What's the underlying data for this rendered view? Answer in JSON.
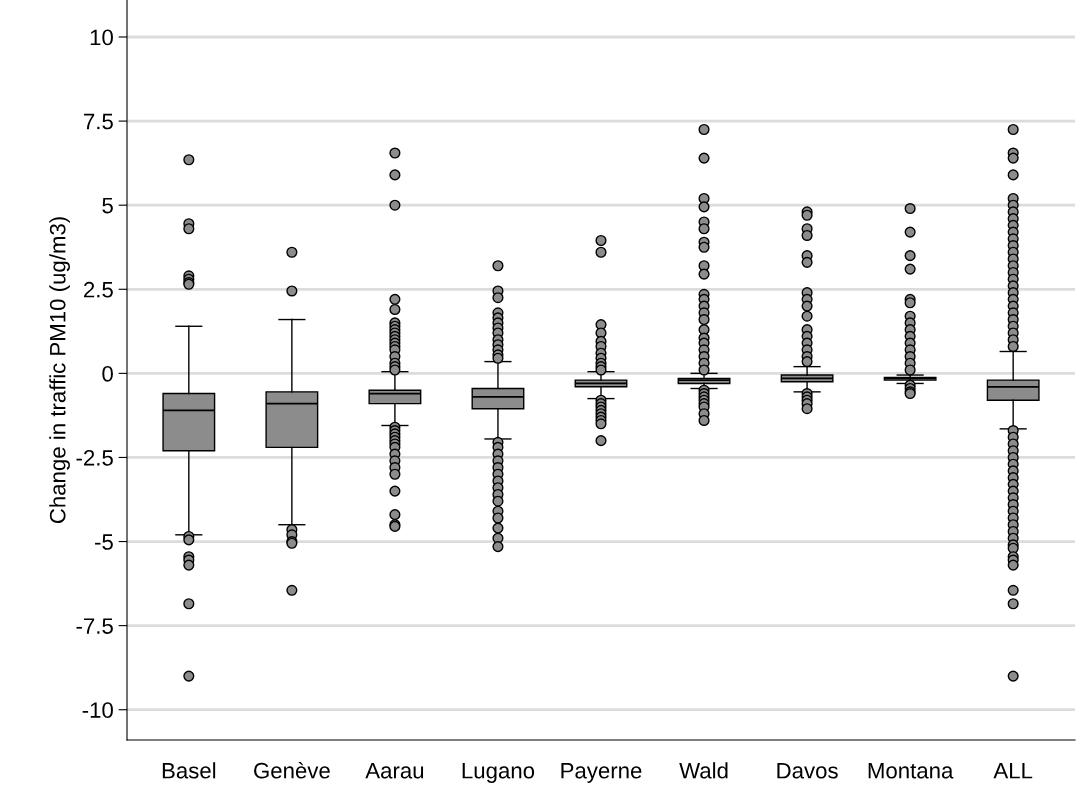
{
  "chart_data": {
    "type": "box",
    "ylabel": "Change in traffic PM10 (ug/m3)",
    "categories": [
      "Basel",
      "Genève",
      "Aarau",
      "Lugano",
      "Payerne",
      "Wald",
      "Davos",
      "Montana",
      "ALL"
    ],
    "color": "#8c8c8c",
    "boxes": [
      {
        "low": -4.8,
        "q1": -2.3,
        "median": -1.1,
        "q3": -0.6,
        "high": 1.4,
        "outliers": [
          6.35,
          4.45,
          4.3,
          2.9,
          2.8,
          2.7,
          2.65,
          -4.85,
          -4.95,
          -5.45,
          -5.55,
          -5.7,
          -6.85,
          -9.0
        ]
      },
      {
        "low": -4.5,
        "q1": -2.2,
        "median": -0.9,
        "q3": -0.55,
        "high": 1.6,
        "outliers": [
          3.6,
          2.45,
          -4.65,
          -4.8,
          -5.0,
          -5.05,
          -6.45
        ]
      },
      {
        "low": -1.55,
        "q1": -0.9,
        "median": -0.6,
        "q3": -0.5,
        "high": 0.05,
        "outliers": [
          6.55,
          5.9,
          5.0,
          2.2,
          1.9,
          1.5,
          1.4,
          1.3,
          1.2,
          1.1,
          1.0,
          0.9,
          0.8,
          0.7,
          0.5,
          0.3,
          0.2,
          0.1,
          -1.6,
          -1.7,
          -1.8,
          -1.9,
          -2.0,
          -2.1,
          -2.2,
          -2.4,
          -2.6,
          -2.8,
          -3.0,
          -3.5,
          -4.2,
          -4.5,
          -4.55
        ]
      },
      {
        "low": -1.95,
        "q1": -1.05,
        "median": -0.7,
        "q3": -0.45,
        "high": 0.35,
        "outliers": [
          3.2,
          2.45,
          2.25,
          1.8,
          1.65,
          1.5,
          1.35,
          1.2,
          1.0,
          0.85,
          0.7,
          0.55,
          0.45,
          -2.05,
          -2.2,
          -2.4,
          -2.6,
          -2.8,
          -3.0,
          -3.2,
          -3.4,
          -3.6,
          -3.8,
          -4.1,
          -4.3,
          -4.6,
          -4.9,
          -5.15
        ]
      },
      {
        "low": -0.75,
        "q1": -0.4,
        "median": -0.3,
        "q3": -0.2,
        "high": 0.05,
        "outliers": [
          3.95,
          3.6,
          1.45,
          1.2,
          0.95,
          0.8,
          0.6,
          0.45,
          0.3,
          0.2,
          0.1,
          -0.8,
          -0.9,
          -1.0,
          -1.1,
          -1.2,
          -1.3,
          -1.4,
          -1.5,
          -2.0
        ]
      },
      {
        "low": -0.45,
        "q1": -0.3,
        "median": -0.2,
        "q3": -0.15,
        "high": 0.0,
        "outliers": [
          7.25,
          6.4,
          5.2,
          4.95,
          4.5,
          4.3,
          3.9,
          3.75,
          3.2,
          2.95,
          2.35,
          2.2,
          2.0,
          1.8,
          1.6,
          1.3,
          1.05,
          0.9,
          0.7,
          0.5,
          0.3,
          0.1,
          -0.5,
          -0.6,
          -0.7,
          -0.8,
          -0.9,
          -1.0,
          -1.2,
          -1.4
        ]
      },
      {
        "low": -0.55,
        "q1": -0.25,
        "median": -0.15,
        "q3": -0.05,
        "high": 0.2,
        "outliers": [
          4.8,
          4.7,
          4.3,
          4.1,
          3.5,
          3.3,
          2.4,
          2.2,
          2.0,
          1.7,
          1.3,
          1.1,
          0.9,
          0.7,
          0.5,
          0.35,
          -0.6,
          -0.7,
          -0.8,
          -0.9,
          -1.05
        ]
      },
      {
        "low": -0.3,
        "q1": -0.2,
        "median": -0.15,
        "q3": -0.12,
        "high": -0.05,
        "outliers": [
          4.9,
          4.2,
          3.5,
          3.1,
          2.2,
          2.1,
          1.7,
          1.5,
          1.3,
          1.1,
          0.9,
          0.7,
          0.5,
          0.3,
          0.1,
          -0.35,
          -0.45,
          -0.55,
          -0.6
        ]
      },
      {
        "low": -1.65,
        "q1": -0.8,
        "median": -0.4,
        "q3": -0.2,
        "high": 0.65,
        "outliers": [
          7.25,
          6.55,
          6.4,
          5.9,
          5.2,
          5.0,
          4.8,
          4.6,
          4.4,
          4.2,
          4.0,
          3.8,
          3.6,
          3.4,
          3.2,
          3.0,
          2.8,
          2.6,
          2.4,
          2.2,
          2.0,
          1.8,
          1.6,
          1.4,
          1.2,
          1.0,
          0.8,
          -1.7,
          -1.9,
          -2.1,
          -2.3,
          -2.5,
          -2.7,
          -2.9,
          -3.1,
          -3.3,
          -3.5,
          -3.7,
          -3.9,
          -4.1,
          -4.3,
          -4.5,
          -4.7,
          -4.9,
          -5.1,
          -5.2,
          -5.45,
          -5.55,
          -5.7,
          -6.45,
          -6.85,
          -9.0
        ]
      }
    ],
    "ylim": [
      -10.9,
      11.1
    ],
    "yticks": [
      10,
      7.5,
      5,
      2.5,
      0,
      {
        "value": -2.5,
        "label": "-2.5"
      },
      {
        "value": -5,
        "label": "-5"
      },
      {
        "value": -7.5,
        "label": "-7.5"
      },
      {
        "value": -10,
        "label": "-10"
      }
    ],
    "grid": "y"
  }
}
